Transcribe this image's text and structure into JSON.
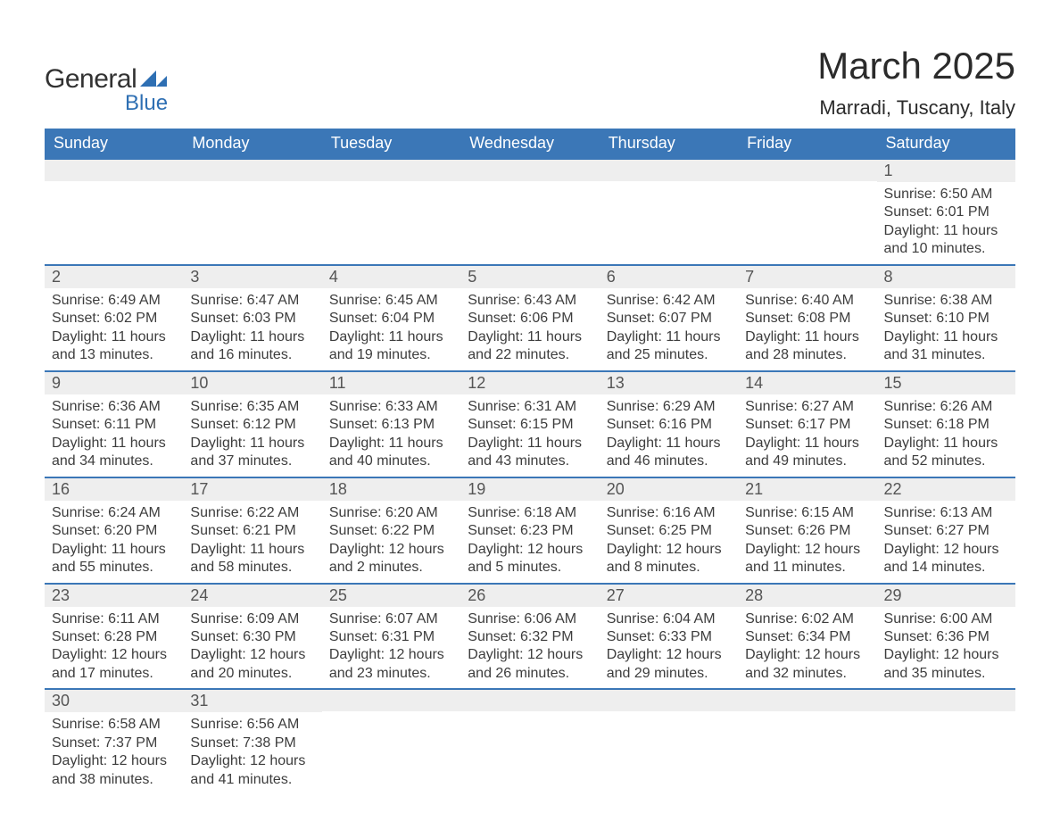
{
  "colors": {
    "header_bg": "#3b77b7",
    "header_text": "#ffffff",
    "daynum_bg": "#eeeeee",
    "daynum_text": "#555555",
    "row_divider": "#3b77b7",
    "body_text": "#3d3d3d",
    "title_text": "#2b2b2b",
    "logo_general": "#323232",
    "logo_blue": "#2e6fb3",
    "background": "#ffffff"
  },
  "typography": {
    "month_title_fontsize": 42,
    "location_fontsize": 22,
    "dayhead_fontsize": 18,
    "daynum_fontsize": 18,
    "body_fontsize": 16,
    "logo_general_fontsize": 30,
    "logo_blue_fontsize": 24,
    "font_family": "Arial"
  },
  "logo": {
    "general": "General",
    "blue": "Blue"
  },
  "title": "March 2025",
  "location": "Marradi, Tuscany, Italy",
  "day_labels": [
    "Sunday",
    "Monday",
    "Tuesday",
    "Wednesday",
    "Thursday",
    "Friday",
    "Saturday"
  ],
  "weeks": [
    [
      null,
      null,
      null,
      null,
      null,
      null,
      {
        "n": "1",
        "sr": "Sunrise: 6:50 AM",
        "ss": "Sunset: 6:01 PM",
        "d1": "Daylight: 11 hours",
        "d2": "and 10 minutes."
      }
    ],
    [
      {
        "n": "2",
        "sr": "Sunrise: 6:49 AM",
        "ss": "Sunset: 6:02 PM",
        "d1": "Daylight: 11 hours",
        "d2": "and 13 minutes."
      },
      {
        "n": "3",
        "sr": "Sunrise: 6:47 AM",
        "ss": "Sunset: 6:03 PM",
        "d1": "Daylight: 11 hours",
        "d2": "and 16 minutes."
      },
      {
        "n": "4",
        "sr": "Sunrise: 6:45 AM",
        "ss": "Sunset: 6:04 PM",
        "d1": "Daylight: 11 hours",
        "d2": "and 19 minutes."
      },
      {
        "n": "5",
        "sr": "Sunrise: 6:43 AM",
        "ss": "Sunset: 6:06 PM",
        "d1": "Daylight: 11 hours",
        "d2": "and 22 minutes."
      },
      {
        "n": "6",
        "sr": "Sunrise: 6:42 AM",
        "ss": "Sunset: 6:07 PM",
        "d1": "Daylight: 11 hours",
        "d2": "and 25 minutes."
      },
      {
        "n": "7",
        "sr": "Sunrise: 6:40 AM",
        "ss": "Sunset: 6:08 PM",
        "d1": "Daylight: 11 hours",
        "d2": "and 28 minutes."
      },
      {
        "n": "8",
        "sr": "Sunrise: 6:38 AM",
        "ss": "Sunset: 6:10 PM",
        "d1": "Daylight: 11 hours",
        "d2": "and 31 minutes."
      }
    ],
    [
      {
        "n": "9",
        "sr": "Sunrise: 6:36 AM",
        "ss": "Sunset: 6:11 PM",
        "d1": "Daylight: 11 hours",
        "d2": "and 34 minutes."
      },
      {
        "n": "10",
        "sr": "Sunrise: 6:35 AM",
        "ss": "Sunset: 6:12 PM",
        "d1": "Daylight: 11 hours",
        "d2": "and 37 minutes."
      },
      {
        "n": "11",
        "sr": "Sunrise: 6:33 AM",
        "ss": "Sunset: 6:13 PM",
        "d1": "Daylight: 11 hours",
        "d2": "and 40 minutes."
      },
      {
        "n": "12",
        "sr": "Sunrise: 6:31 AM",
        "ss": "Sunset: 6:15 PM",
        "d1": "Daylight: 11 hours",
        "d2": "and 43 minutes."
      },
      {
        "n": "13",
        "sr": "Sunrise: 6:29 AM",
        "ss": "Sunset: 6:16 PM",
        "d1": "Daylight: 11 hours",
        "d2": "and 46 minutes."
      },
      {
        "n": "14",
        "sr": "Sunrise: 6:27 AM",
        "ss": "Sunset: 6:17 PM",
        "d1": "Daylight: 11 hours",
        "d2": "and 49 minutes."
      },
      {
        "n": "15",
        "sr": "Sunrise: 6:26 AM",
        "ss": "Sunset: 6:18 PM",
        "d1": "Daylight: 11 hours",
        "d2": "and 52 minutes."
      }
    ],
    [
      {
        "n": "16",
        "sr": "Sunrise: 6:24 AM",
        "ss": "Sunset: 6:20 PM",
        "d1": "Daylight: 11 hours",
        "d2": "and 55 minutes."
      },
      {
        "n": "17",
        "sr": "Sunrise: 6:22 AM",
        "ss": "Sunset: 6:21 PM",
        "d1": "Daylight: 11 hours",
        "d2": "and 58 minutes."
      },
      {
        "n": "18",
        "sr": "Sunrise: 6:20 AM",
        "ss": "Sunset: 6:22 PM",
        "d1": "Daylight: 12 hours",
        "d2": "and 2 minutes."
      },
      {
        "n": "19",
        "sr": "Sunrise: 6:18 AM",
        "ss": "Sunset: 6:23 PM",
        "d1": "Daylight: 12 hours",
        "d2": "and 5 minutes."
      },
      {
        "n": "20",
        "sr": "Sunrise: 6:16 AM",
        "ss": "Sunset: 6:25 PM",
        "d1": "Daylight: 12 hours",
        "d2": "and 8 minutes."
      },
      {
        "n": "21",
        "sr": "Sunrise: 6:15 AM",
        "ss": "Sunset: 6:26 PM",
        "d1": "Daylight: 12 hours",
        "d2": "and 11 minutes."
      },
      {
        "n": "22",
        "sr": "Sunrise: 6:13 AM",
        "ss": "Sunset: 6:27 PM",
        "d1": "Daylight: 12 hours",
        "d2": "and 14 minutes."
      }
    ],
    [
      {
        "n": "23",
        "sr": "Sunrise: 6:11 AM",
        "ss": "Sunset: 6:28 PM",
        "d1": "Daylight: 12 hours",
        "d2": "and 17 minutes."
      },
      {
        "n": "24",
        "sr": "Sunrise: 6:09 AM",
        "ss": "Sunset: 6:30 PM",
        "d1": "Daylight: 12 hours",
        "d2": "and 20 minutes."
      },
      {
        "n": "25",
        "sr": "Sunrise: 6:07 AM",
        "ss": "Sunset: 6:31 PM",
        "d1": "Daylight: 12 hours",
        "d2": "and 23 minutes."
      },
      {
        "n": "26",
        "sr": "Sunrise: 6:06 AM",
        "ss": "Sunset: 6:32 PM",
        "d1": "Daylight: 12 hours",
        "d2": "and 26 minutes."
      },
      {
        "n": "27",
        "sr": "Sunrise: 6:04 AM",
        "ss": "Sunset: 6:33 PM",
        "d1": "Daylight: 12 hours",
        "d2": "and 29 minutes."
      },
      {
        "n": "28",
        "sr": "Sunrise: 6:02 AM",
        "ss": "Sunset: 6:34 PM",
        "d1": "Daylight: 12 hours",
        "d2": "and 32 minutes."
      },
      {
        "n": "29",
        "sr": "Sunrise: 6:00 AM",
        "ss": "Sunset: 6:36 PM",
        "d1": "Daylight: 12 hours",
        "d2": "and 35 minutes."
      }
    ],
    [
      {
        "n": "30",
        "sr": "Sunrise: 6:58 AM",
        "ss": "Sunset: 7:37 PM",
        "d1": "Daylight: 12 hours",
        "d2": "and 38 minutes."
      },
      {
        "n": "31",
        "sr": "Sunrise: 6:56 AM",
        "ss": "Sunset: 7:38 PM",
        "d1": "Daylight: 12 hours",
        "d2": "and 41 minutes."
      },
      null,
      null,
      null,
      null,
      null
    ]
  ]
}
